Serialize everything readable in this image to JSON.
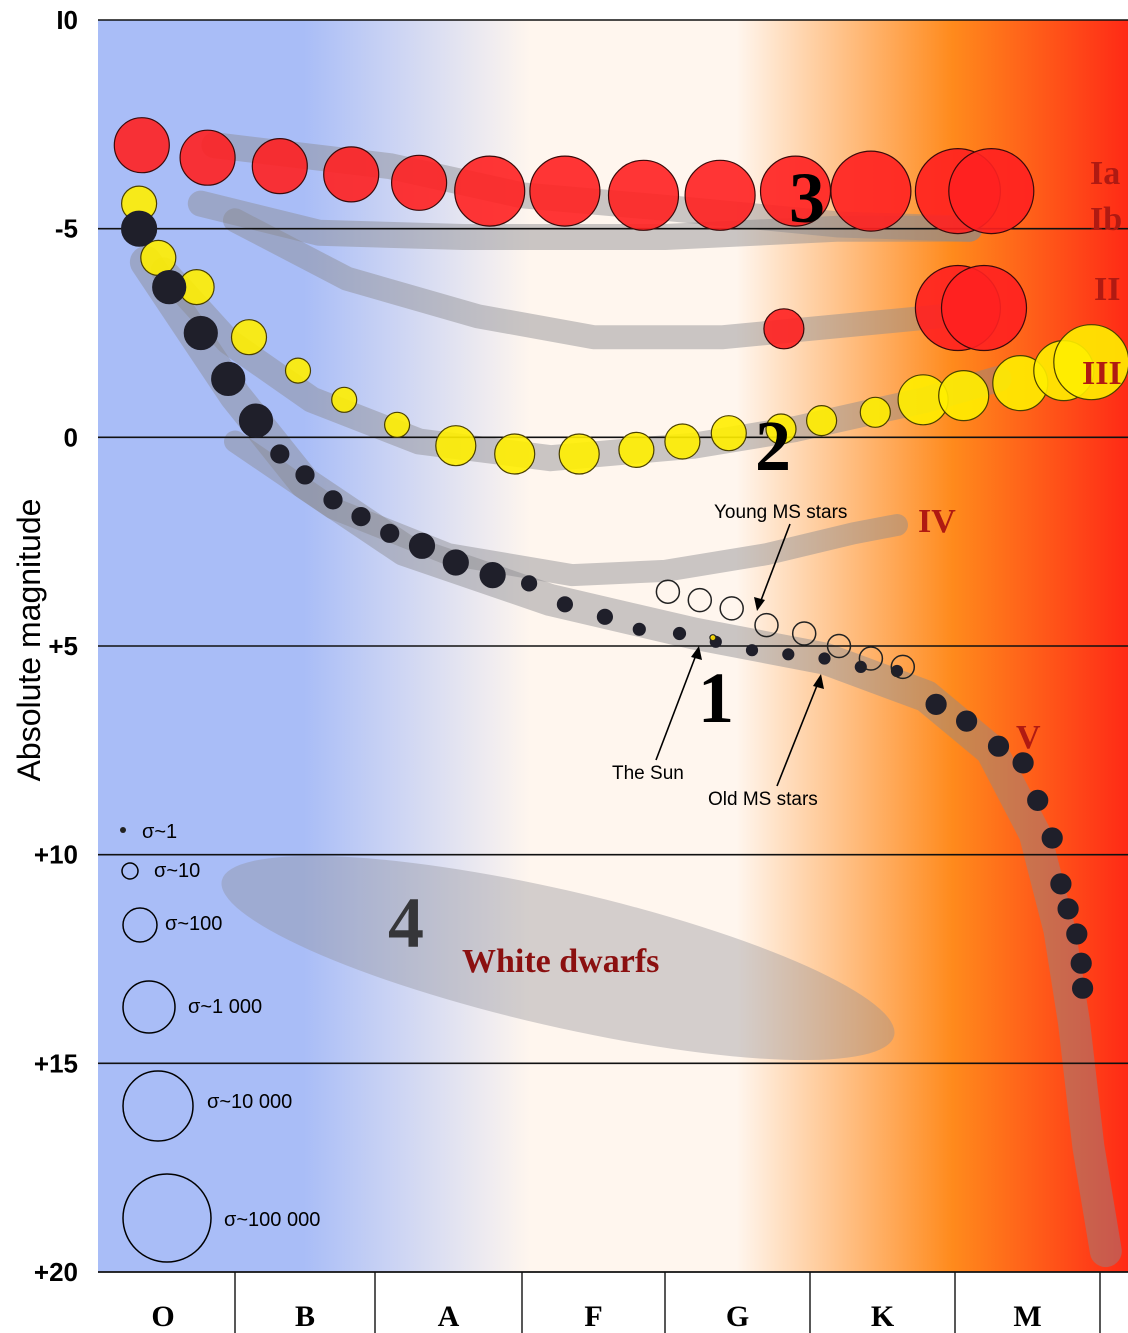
{
  "chart_data": {
    "type": "scatter",
    "title": "",
    "ylabel": "Absolute magnitude",
    "ylim": [
      -10,
      20
    ],
    "y_inverted": true,
    "y_ticks": [
      "I0",
      "-5",
      "0",
      "+5",
      "+10",
      "+15",
      "+20"
    ],
    "x_categories": [
      "O",
      "B",
      "A",
      "F",
      "G",
      "K",
      "M"
    ],
    "background": "spectral gradient from blue (O) to red (M)",
    "colors": {
      "blue": "#a9bdf7",
      "white": "#fff6ee",
      "orange": "#ff8a1c",
      "red": "#ff2a16",
      "supergiant": "#ff2020",
      "giant": "#ffee00",
      "dwarf": "#1f1f2a"
    },
    "luminosity_classes": [
      "Ia",
      "Ib",
      "II",
      "III",
      "IV",
      "V"
    ],
    "region_labels": [
      "1",
      "2",
      "3",
      "4"
    ],
    "white_dwarfs_label": "White dwarfs",
    "annotations": [
      "Young MS stars",
      "The Sun",
      "Old MS stars"
    ],
    "legend": [
      "σ~1",
      "σ~10",
      "σ~100",
      "σ~1 000",
      "σ~10 000",
      "σ~100 000"
    ],
    "series": [
      {
        "name": "Ia",
        "x": [
          0.32,
          0.8,
          1.32,
          1.83,
          2.3,
          2.78,
          3.3,
          3.85,
          4.38,
          4.9,
          5.42,
          6.02,
          6.25
        ],
        "y": [
          -7.0,
          -6.7,
          -6.5,
          -6.3,
          -6.1,
          -5.9,
          -5.9,
          -5.8,
          -5.8,
          -5.9,
          -5.9,
          -5.9,
          -5.9
        ],
        "size": [
          55,
          55,
          55,
          55,
          55,
          70,
          70,
          70,
          70,
          70,
          80,
          85,
          85
        ]
      },
      {
        "name": "II",
        "x": [
          4.82,
          6.02,
          6.2
        ],
        "y": [
          -2.6,
          -3.1,
          -3.1
        ],
        "size": [
          40,
          85,
          85
        ]
      },
      {
        "name": "III",
        "x": [
          0.3,
          0.44,
          0.72,
          1.1,
          1.45,
          1.78,
          2.15,
          2.55,
          2.95,
          3.4,
          3.8,
          4.12,
          4.44,
          4.8,
          5.08,
          5.45,
          5.78,
          6.06,
          6.45,
          6.75,
          6.94
        ],
        "y": [
          -5.6,
          -4.3,
          -3.6,
          -2.4,
          -1.6,
          -0.9,
          -0.3,
          0.2,
          0.4,
          0.4,
          0.3,
          0.1,
          -0.1,
          -0.2,
          -0.4,
          -0.6,
          -0.9,
          -1.0,
          -1.3,
          -1.6,
          -1.8
        ],
        "size": [
          35,
          35,
          35,
          35,
          25,
          25,
          25,
          40,
          40,
          40,
          35,
          35,
          35,
          30,
          30,
          30,
          50,
          50,
          55,
          60,
          75
        ]
      },
      {
        "name": "V",
        "x": [
          0.3,
          0.52,
          0.75,
          0.95,
          1.15,
          1.32,
          1.5,
          1.7,
          1.9,
          2.1,
          2.32,
          2.55,
          2.8,
          3.05,
          3.3,
          3.58,
          3.82,
          4.1,
          4.35,
          4.6,
          4.85,
          5.1,
          5.35,
          5.6,
          5.87,
          6.08,
          6.3,
          6.47,
          6.57,
          6.67,
          6.73,
          6.78,
          6.84,
          6.87,
          6.88
        ],
        "y": [
          -5.0,
          -3.6,
          -2.5,
          -1.4,
          -0.4,
          0.4,
          0.9,
          1.5,
          1.9,
          2.3,
          2.6,
          3.0,
          3.3,
          3.5,
          4.0,
          4.3,
          4.6,
          4.7,
          4.9,
          5.1,
          5.2,
          5.3,
          5.5,
          5.6,
          6.4,
          6.8,
          7.4,
          7.8,
          8.7,
          9.6,
          10.7,
          11.3,
          11.9,
          12.6,
          13.2
        ],
        "size": [
          35,
          33,
          33,
          33,
          33,
          18,
          18,
          18,
          18,
          18,
          25,
          25,
          25,
          15,
          15,
          15,
          12,
          12,
          11,
          11,
          11,
          11,
          11,
          11,
          20,
          20,
          20,
          20,
          20,
          20,
          20,
          20,
          20,
          20,
          20
        ]
      },
      {
        "name": "Young MS stars",
        "x": [
          4.02,
          4.24,
          4.46,
          4.7,
          4.96,
          5.2,
          5.42,
          5.64
        ],
        "y": [
          3.7,
          3.9,
          4.1,
          4.5,
          4.7,
          5.0,
          5.3,
          5.5
        ],
        "size": [
          23,
          23,
          23,
          23,
          23,
          23,
          23,
          23
        ]
      },
      {
        "name": "The Sun",
        "x": [
          4.33
        ],
        "y": [
          4.8
        ],
        "size": [
          6
        ]
      }
    ]
  }
}
